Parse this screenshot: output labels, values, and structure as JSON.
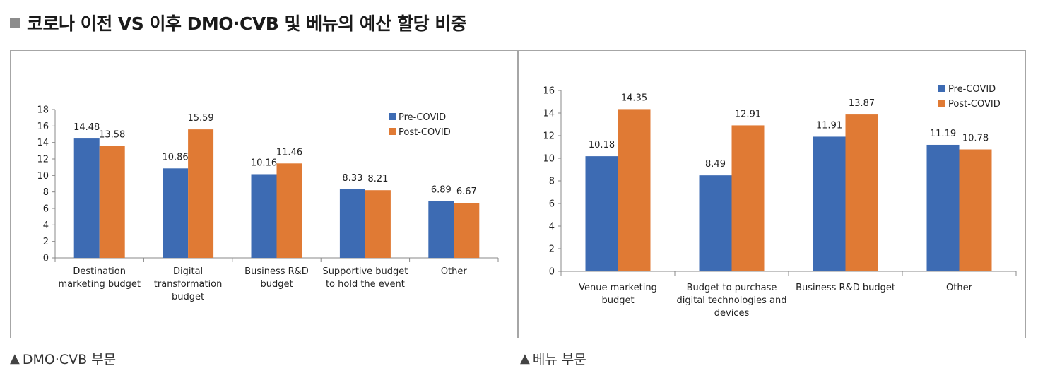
{
  "page": {
    "title": "코로나 이전 VS 이후 DMO·CVB 및 베뉴의 예산 할당 비중"
  },
  "captions": {
    "left": "DMO·CVB 부문",
    "right": "베뉴 부문",
    "marker": "▲"
  },
  "colors": {
    "pre_covid": "#3d6bb3",
    "post_covid": "#e07a34",
    "title_square": "#8c8c8c",
    "panel_border": "#a6a6a6"
  },
  "chart_data": [
    {
      "type": "bar",
      "categories": [
        [
          "Destination",
          "marketing budget"
        ],
        [
          "Digital",
          "transformation",
          "budget"
        ],
        [
          "Business R&D",
          "budget"
        ],
        [
          "Supportive budget",
          "to hold the event"
        ],
        [
          "Other"
        ]
      ],
      "series": [
        {
          "name": "Pre-COVID",
          "values": [
            14.48,
            10.86,
            10.16,
            8.33,
            6.89
          ],
          "labels": [
            "14.48",
            "10.86",
            "10.16",
            "8.33",
            "6.89"
          ]
        },
        {
          "name": "Post-COVID",
          "values": [
            13.58,
            15.59,
            11.46,
            8.21,
            6.67
          ],
          "labels": [
            "13.58",
            "15.59",
            "11.46",
            "8.21",
            "6.67"
          ]
        }
      ],
      "ylim": [
        0,
        18
      ],
      "yticks": [
        0,
        2,
        4,
        6,
        8,
        10,
        12,
        14,
        16,
        18
      ],
      "grid": false,
      "legend": "top-right"
    },
    {
      "type": "bar",
      "categories": [
        [
          "Venue marketing",
          "budget"
        ],
        [
          "Budget to purchase",
          "digital technologies and",
          "devices"
        ],
        [
          "Business R&D budget"
        ],
        [
          "Other"
        ]
      ],
      "series": [
        {
          "name": "Pre-COVID",
          "values": [
            10.18,
            8.49,
            11.91,
            11.19
          ],
          "labels": [
            "10.18",
            "8.49",
            "11.91",
            "11.19"
          ]
        },
        {
          "name": "Post-COVID",
          "values": [
            14.35,
            12.91,
            13.87,
            10.78
          ],
          "labels": [
            "14.35",
            "12.91",
            "13.87",
            "10.78"
          ]
        }
      ],
      "ylim": [
        0,
        16
      ],
      "yticks": [
        0,
        2,
        4,
        6,
        8,
        10,
        12,
        14,
        16
      ],
      "grid": false,
      "legend": "top-right"
    }
  ]
}
